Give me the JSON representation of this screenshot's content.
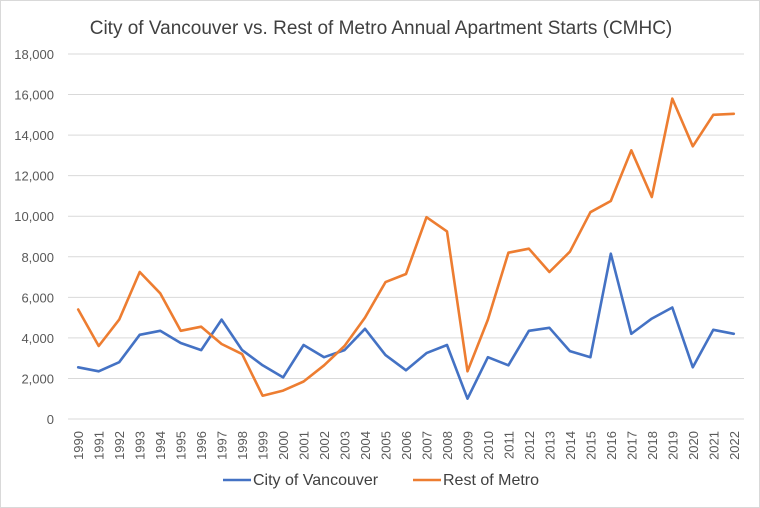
{
  "chart_data": {
    "type": "line",
    "title": "City of Vancouver vs. Rest of Metro Annual Apartment Starts (CMHC)",
    "xlabel": "",
    "ylabel": "",
    "x": [
      "1990",
      "1991",
      "1992",
      "1993",
      "1994",
      "1995",
      "1996",
      "1997",
      "1998",
      "1999",
      "2000",
      "2001",
      "2002",
      "2003",
      "2004",
      "2005",
      "2006",
      "2007",
      "2008",
      "2009",
      "2010",
      "2011",
      "2012",
      "2013",
      "2014",
      "2015",
      "2016",
      "2017",
      "2018",
      "2019",
      "2020",
      "2021",
      "2022"
    ],
    "ylim": [
      0,
      18000
    ],
    "yticks": [
      0,
      2000,
      4000,
      6000,
      8000,
      10000,
      12000,
      14000,
      16000,
      18000
    ],
    "ytick_labels": [
      "0",
      "2,000",
      "4,000",
      "6,000",
      "8,000",
      "10,000",
      "12,000",
      "14,000",
      "16,000",
      "18,000"
    ],
    "grid": true,
    "legend_position": "bottom",
    "series": [
      {
        "name": "City of Vancouver",
        "color": "#4472c4",
        "values": [
          2550,
          2350,
          2800,
          4150,
          4350,
          3750,
          3400,
          4900,
          3400,
          2650,
          2050,
          3650,
          3050,
          3400,
          4450,
          3150,
          2400,
          3250,
          3650,
          1000,
          3050,
          2650,
          4350,
          4500,
          3350,
          3050,
          8150,
          4200,
          4950,
          5500,
          2550,
          4400,
          4200
        ]
      },
      {
        "name": "Rest of Metro",
        "color": "#ed7d31",
        "values": [
          5400,
          3600,
          4900,
          7250,
          6200,
          4350,
          4550,
          3700,
          3200,
          1150,
          1400,
          1850,
          2650,
          3600,
          5000,
          6750,
          7150,
          9950,
          9250,
          2350,
          4900,
          8200,
          8400,
          7250,
          8250,
          10200,
          10750,
          13250,
          10950,
          15800,
          13450,
          15000,
          15050
        ]
      }
    ]
  }
}
